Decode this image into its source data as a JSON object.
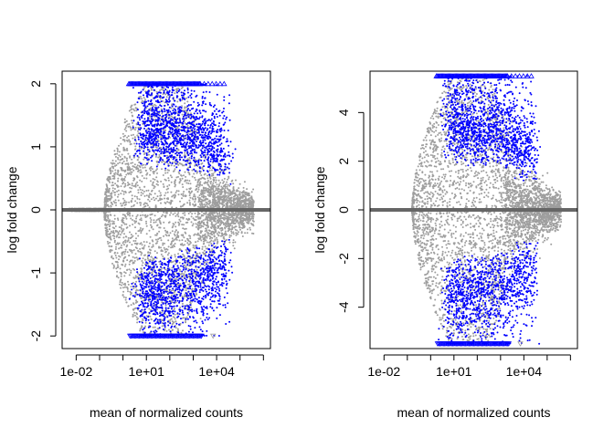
{
  "chart_data": [
    {
      "type": "scatter",
      "title": "",
      "xlabel": "mean of normalized counts",
      "ylabel": "log fold change",
      "x_scale": "log10",
      "x_range_log10": [
        -2.6,
        6.3
      ],
      "ylim": [
        -2.2,
        2.2
      ],
      "x_ticks": [
        {
          "log10": -2,
          "label": "1e-02"
        },
        {
          "log10": 1,
          "label": "1e+01"
        },
        {
          "log10": 4,
          "label": "1e+04"
        }
      ],
      "y_ticks": [
        {
          "value": -2,
          "label": "-2"
        },
        {
          "value": -1,
          "label": "-1"
        },
        {
          "value": 0,
          "label": "0"
        },
        {
          "value": 1,
          "label": "1"
        },
        {
          "value": 2,
          "label": "2"
        }
      ],
      "cap": 2,
      "grid": false,
      "colors": {
        "non_significant": "#9e9e9e",
        "significant": "#0000ff",
        "zero_line": "#666666"
      }
    },
    {
      "type": "scatter",
      "title": "",
      "xlabel": "mean of normalized counts",
      "ylabel": "log fold change",
      "x_scale": "log10",
      "x_range_log10": [
        -2.6,
        6.3
      ],
      "ylim": [
        -5.7,
        5.7
      ],
      "x_ticks": [
        {
          "log10": -2,
          "label": "1e-02"
        },
        {
          "log10": 1,
          "label": "1e+01"
        },
        {
          "log10": 4,
          "label": "1e+04"
        }
      ],
      "y_ticks": [
        {
          "value": -4,
          "label": "-4"
        },
        {
          "value": -2,
          "label": "-2"
        },
        {
          "value": 0,
          "label": "0"
        },
        {
          "value": 2,
          "label": "2"
        },
        {
          "value": 4,
          "label": "4"
        }
      ],
      "cap": 5.5,
      "grid": false,
      "colors": {
        "non_significant": "#9e9e9e",
        "significant": "#0000ff",
        "zero_line": "#666666"
      }
    }
  ]
}
